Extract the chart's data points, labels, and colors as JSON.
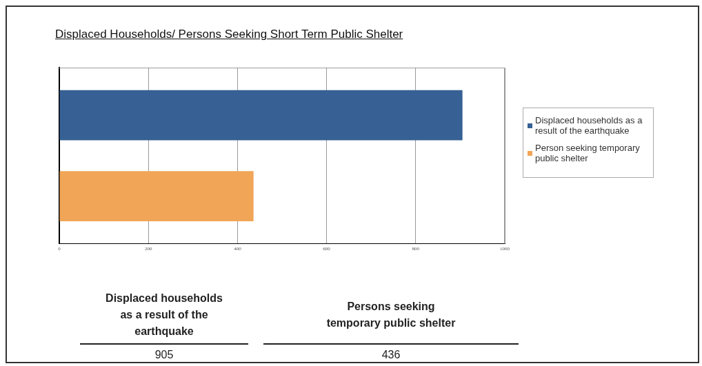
{
  "chart_data": {
    "type": "bar",
    "orientation": "horizontal",
    "title": "Displaced Households/ Persons Seeking Short Term Public Shelter",
    "categories": [
      null
    ],
    "series": [
      {
        "name": "Displaced households as a result of the earthquake",
        "color": "#376194",
        "values": [
          905
        ]
      },
      {
        "name": "Person seeking temporary public shelter",
        "color": "#f0a557",
        "values": [
          436
        ]
      }
    ],
    "xlim": [
      0,
      1000
    ],
    "xticks": [
      0,
      200,
      400,
      600,
      800,
      1000
    ],
    "grid": "x",
    "legend": "right",
    "annotations": [
      "Displaced households as a result of the earthquake",
      "Persons seeking temporary public shelter",
      "905",
      "436"
    ]
  }
}
